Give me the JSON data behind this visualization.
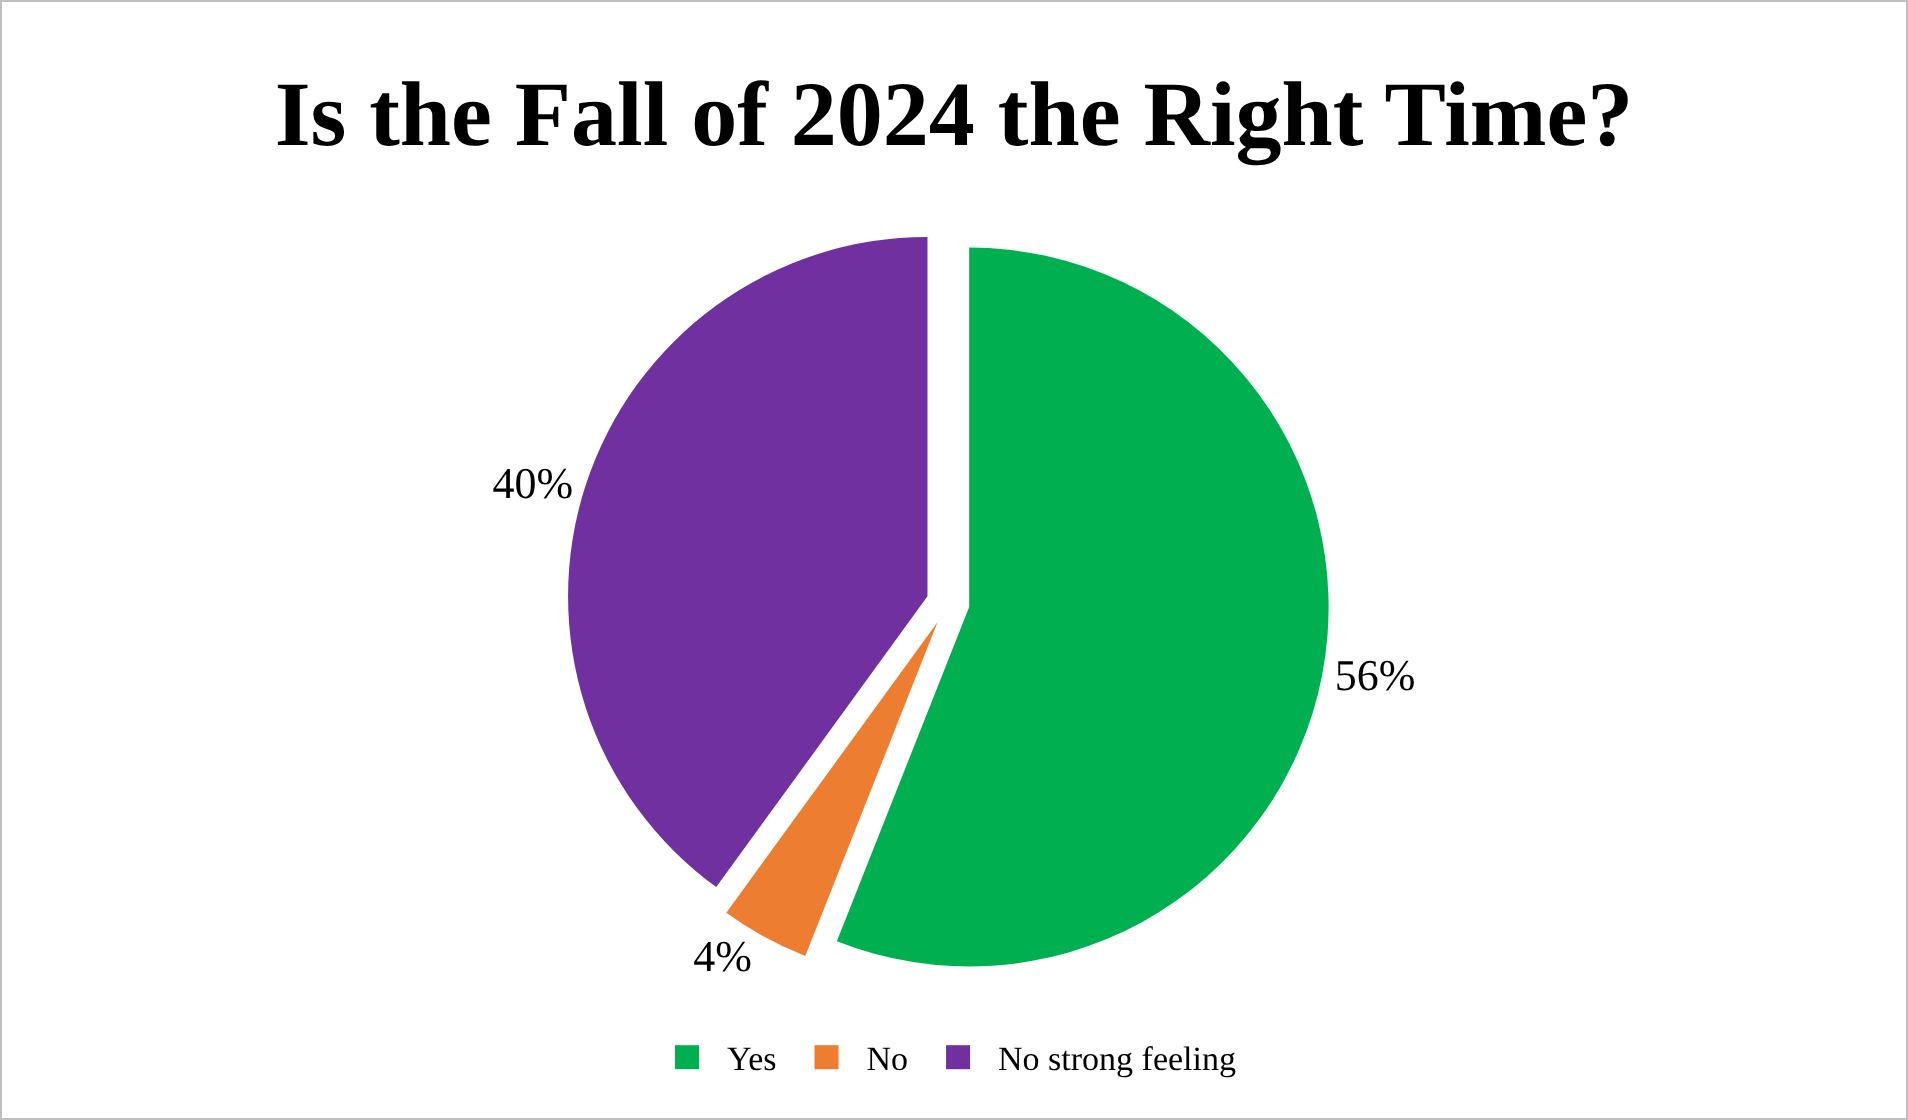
{
  "chart_data": {
    "type": "pie",
    "title": "Is the Fall of 2024 the Right Time?",
    "categories": [
      "Yes",
      "No",
      "No strong feeling"
    ],
    "values": [
      56,
      4,
      40
    ],
    "value_labels": [
      "56%",
      "4%",
      "40%"
    ],
    "colors": [
      "#00b050",
      "#ed7d31",
      "#7030a0"
    ],
    "legend": "bottom"
  }
}
